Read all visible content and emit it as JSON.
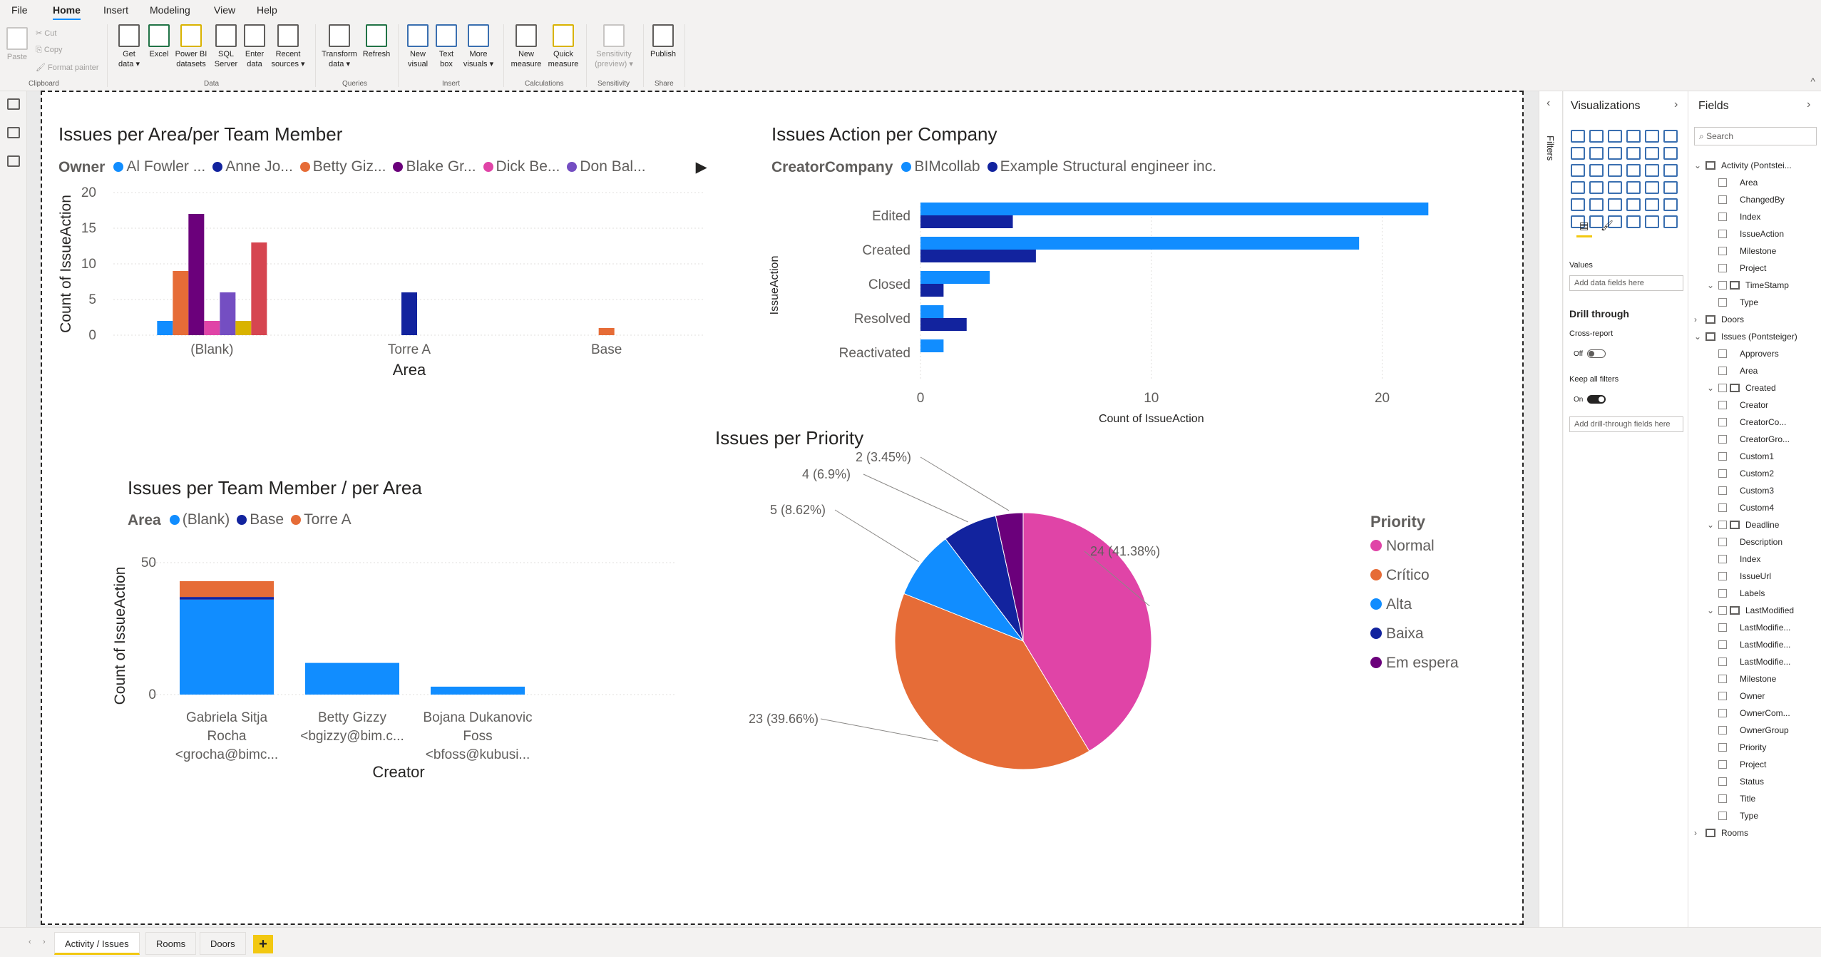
{
  "menu": [
    "File",
    "Home",
    "Insert",
    "Modeling",
    "View",
    "Help"
  ],
  "ribbon": {
    "clipboard": {
      "paste": "Paste",
      "cut": "Cut",
      "copy": "Copy",
      "format_painter": "Format painter",
      "label": "Clipboard"
    },
    "data": {
      "label": "Data",
      "buttons": [
        "Get data",
        "Excel",
        "Power BI datasets",
        "SQL Server",
        "Enter data",
        "Recent sources"
      ]
    },
    "queries": {
      "label": "Queries",
      "buttons": [
        "Transform data",
        "Refresh"
      ]
    },
    "insert": {
      "label": "Insert",
      "buttons": [
        "New visual",
        "Text box",
        "More visuals"
      ]
    },
    "calculations": {
      "label": "Calculations",
      "buttons": [
        "New measure",
        "Quick measure"
      ]
    },
    "sensitivity": {
      "label": "Sensitivity",
      "buttons": [
        "Sensitivity (preview)"
      ]
    },
    "share": {
      "label": "Share",
      "buttons": [
        "Publish"
      ]
    }
  },
  "charts": {
    "area_team": {
      "title": "Issues per Area/per Team Member",
      "legend_title": "Owner",
      "legend": [
        {
          "name": "Al Fowler ...",
          "color": "#118dff"
        },
        {
          "name": "Anne Jo...",
          "color": "#12239e"
        },
        {
          "name": "Betty Giz...",
          "color": "#e66c37"
        },
        {
          "name": "Blake Gr...",
          "color": "#6b007b"
        },
        {
          "name": "Dick Be...",
          "color": "#e044a7"
        },
        {
          "name": "Don Bal...",
          "color": "#744ec2"
        }
      ],
      "xlabel": "Area",
      "ylabel": "Count of IssueAction"
    },
    "action_company": {
      "title": "Issues Action per Company",
      "legend_title": "CreatorCompany",
      "legend": [
        {
          "name": "BIMcollab",
          "color": "#118dff"
        },
        {
          "name": "Example Structural engineer inc.",
          "color": "#12239e"
        }
      ],
      "xlabel": "Count of IssueAction",
      "ylabel": "IssueAction"
    },
    "team_area": {
      "title": "Issues per Team Member / per Area",
      "legend_title": "Area",
      "legend": [
        {
          "name": "(Blank)",
          "color": "#118dff"
        },
        {
          "name": "Base",
          "color": "#12239e"
        },
        {
          "name": "Torre A",
          "color": "#e66c37"
        }
      ],
      "xlabel": "Creator",
      "ylabel": "Count of IssueAction",
      "category_lines": [
        [
          "Gabriela Sitja",
          "Rocha",
          "<grocha@bimc..."
        ],
        [
          "Betty Gizzy",
          "<bgizzy@bim.c..."
        ],
        [
          "Bojana Dukanovic",
          "Foss",
          "<bfoss@kubusi..."
        ]
      ]
    },
    "priority": {
      "title": "Issues per Priority",
      "legend_title": "Priority",
      "data_labels": [
        "24 (41.38%)",
        "23 (39.66%)",
        "5 (8.62%)",
        "4 (6.9%)",
        "2 (3.45%)"
      ]
    }
  },
  "chart_data": [
    {
      "type": "bar",
      "title": "Issues per Area/per Team Member",
      "xlabel": "Area",
      "ylabel": "Count of IssueAction",
      "categories": [
        "(Blank)",
        "Torre A",
        "Base"
      ],
      "ylim": [
        0,
        20
      ],
      "yticks": [
        0,
        5,
        10,
        15,
        20
      ],
      "bars": [
        {
          "category": "(Blank)",
          "color": "#118dff",
          "value": 2
        },
        {
          "category": "(Blank)",
          "color": "#e66c37",
          "value": 9
        },
        {
          "category": "(Blank)",
          "color": "#6b007b",
          "value": 17
        },
        {
          "category": "(Blank)",
          "color": "#e044a7",
          "value": 2
        },
        {
          "category": "(Blank)",
          "color": "#744ec2",
          "value": 6
        },
        {
          "category": "(Blank)",
          "color": "#d9b300",
          "value": 2
        },
        {
          "category": "(Blank)",
          "color": "#d64550",
          "value": 13
        },
        {
          "category": "Torre A",
          "color": "#12239e",
          "value": 6
        },
        {
          "category": "Base",
          "color": "#e66c37",
          "value": 1
        }
      ]
    },
    {
      "type": "bar",
      "orientation": "horizontal",
      "title": "Issues Action per Company",
      "xlabel": "Count of IssueAction",
      "ylabel": "IssueAction",
      "categories": [
        "Edited",
        "Created",
        "Closed",
        "Resolved",
        "Reactivated"
      ],
      "xlim": [
        0,
        22
      ],
      "xticks": [
        0,
        10,
        20
      ],
      "series": [
        {
          "name": "BIMcollab",
          "color": "#118dff",
          "values": [
            22,
            19,
            3,
            1,
            1
          ]
        },
        {
          "name": "Example Structural engineer inc.",
          "color": "#12239e",
          "values": [
            4,
            5,
            1,
            2,
            0
          ]
        }
      ]
    },
    {
      "type": "bar",
      "stacked": true,
      "title": "Issues per Team Member / per Area",
      "xlabel": "Creator",
      "ylabel": "Count of IssueAction",
      "categories": [
        "Gabriela Sitja Rocha <grocha@bimc...",
        "Betty Gizzy <bgizzy@bim.c...",
        "Bojana Dukanovic Foss <bfoss@kubusi..."
      ],
      "ylim": [
        0,
        50
      ],
      "yticks": [
        0,
        50
      ],
      "series": [
        {
          "name": "(Blank)",
          "color": "#118dff",
          "values": [
            36,
            12,
            3
          ]
        },
        {
          "name": "Base",
          "color": "#12239e",
          "values": [
            1,
            0,
            0
          ]
        },
        {
          "name": "Torre A",
          "color": "#e66c37",
          "values": [
            6,
            0,
            0
          ]
        }
      ]
    },
    {
      "type": "pie",
      "title": "Issues per Priority",
      "legend_title": "Priority",
      "slices": [
        {
          "name": "Normal",
          "value": 24,
          "color": "#e044a7"
        },
        {
          "name": "Crítico",
          "value": 23,
          "color": "#e66c37"
        },
        {
          "name": "Alta",
          "value": 5,
          "color": "#118dff"
        },
        {
          "name": "Baixa",
          "value": 4,
          "color": "#12239e"
        },
        {
          "name": "Em espera",
          "value": 2,
          "color": "#6b007b"
        }
      ]
    }
  ],
  "filters_label": "Filters",
  "viz_pane": {
    "title": "Visualizations",
    "values_label": "Values",
    "add_data_fields": "Add data fields here",
    "drill_through": "Drill through",
    "cross_report": "Cross-report",
    "cross_report_state": "Off",
    "keep_filters": "Keep all filters",
    "keep_filters_state": "On",
    "add_drill": "Add drill-through fields here"
  },
  "fields_pane": {
    "title": "Fields",
    "search_placeholder": "Search",
    "rows": [
      {
        "t": "table",
        "label": "Activity (Pontstei...",
        "open": true
      },
      {
        "t": "field",
        "label": "Area"
      },
      {
        "t": "field",
        "label": "ChangedBy"
      },
      {
        "t": "field",
        "label": "Index"
      },
      {
        "t": "field",
        "label": "IssueAction"
      },
      {
        "t": "field",
        "label": "Milestone"
      },
      {
        "t": "field",
        "label": "Project"
      },
      {
        "t": "group",
        "label": "TimeStamp"
      },
      {
        "t": "field",
        "label": "Type"
      },
      {
        "t": "table",
        "label": "Doors",
        "open": false
      },
      {
        "t": "table",
        "label": "Issues (Pontsteiger)",
        "open": true
      },
      {
        "t": "field",
        "label": "Approvers"
      },
      {
        "t": "field",
        "label": "Area"
      },
      {
        "t": "group",
        "label": "Created"
      },
      {
        "t": "field",
        "label": "Creator"
      },
      {
        "t": "field",
        "label": "CreatorCo..."
      },
      {
        "t": "field",
        "label": "CreatorGro..."
      },
      {
        "t": "field",
        "label": "Custom1"
      },
      {
        "t": "field",
        "label": "Custom2"
      },
      {
        "t": "field",
        "label": "Custom3"
      },
      {
        "t": "field",
        "label": "Custom4"
      },
      {
        "t": "group",
        "label": "Deadline"
      },
      {
        "t": "field",
        "label": "Description"
      },
      {
        "t": "field",
        "label": "Index"
      },
      {
        "t": "field",
        "label": "IssueUrl"
      },
      {
        "t": "field",
        "label": "Labels"
      },
      {
        "t": "group",
        "label": "LastModified"
      },
      {
        "t": "field",
        "label": "LastModifie..."
      },
      {
        "t": "field",
        "label": "LastModifie..."
      },
      {
        "t": "field",
        "label": "LastModifie..."
      },
      {
        "t": "field",
        "label": "Milestone"
      },
      {
        "t": "field",
        "label": "Owner"
      },
      {
        "t": "field",
        "label": "OwnerCom..."
      },
      {
        "t": "field",
        "label": "OwnerGroup"
      },
      {
        "t": "field",
        "label": "Priority"
      },
      {
        "t": "field",
        "label": "Project"
      },
      {
        "t": "field",
        "label": "Status"
      },
      {
        "t": "field",
        "label": "Title"
      },
      {
        "t": "field",
        "label": "Type"
      },
      {
        "t": "table",
        "label": "Rooms",
        "open": false
      }
    ]
  },
  "pages": [
    {
      "label": "Activity / Issues",
      "active": true
    },
    {
      "label": "Rooms",
      "active": false
    },
    {
      "label": "Doors",
      "active": false
    }
  ],
  "add_page_label": "+"
}
